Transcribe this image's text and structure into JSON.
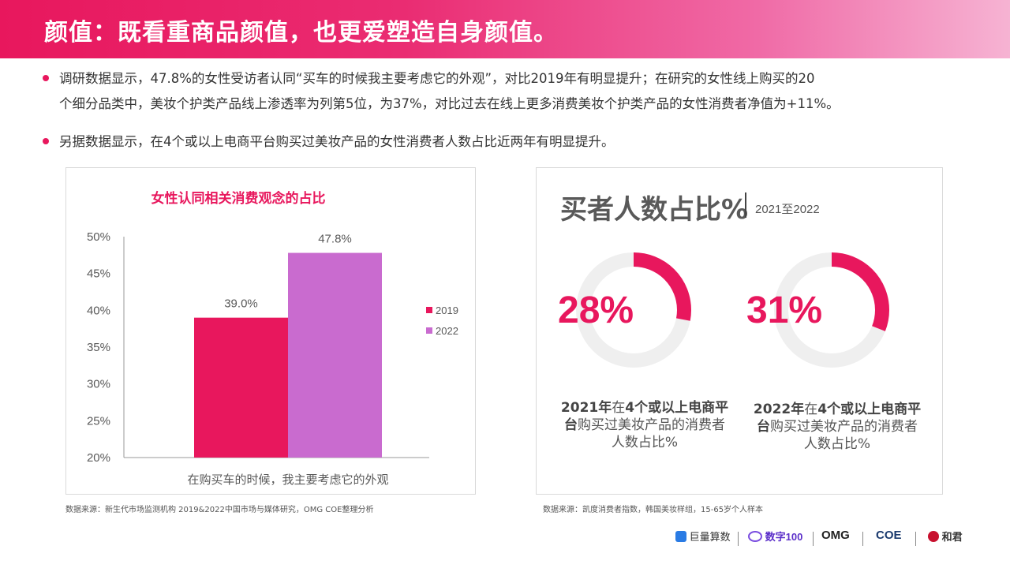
{
  "header": {
    "title": "颜值：既看重商品颜值，也更爱塑造自身颜值。"
  },
  "body": {
    "bullet1_line1": "调研数据显示，47.8%的女性受访者认同“买车的时候我主要考虑它的外观”，对比2019年有明显提升；在研究的女性线上购买的20",
    "bullet1_line2": "个细分品类中，美妆个护类产品线上渗透率为列第5位，为37%，对比过去在线上更多消费美妆个护类产品的女性消费者净值为+11%。",
    "bullet2": "另据数据显示，在4个或以上电商平台购买过美妆产品的女性消费者人数占比近两年有明显提升。"
  },
  "chart_data": [
    {
      "type": "bar",
      "title": "女性认同相关消费观念的占比",
      "categories": [
        "在购买车的时候，我主要考虑它的外观"
      ],
      "series": [
        {
          "name": "2019",
          "values": [
            39.0
          ],
          "color": "#e8175d",
          "label": "39.0%"
        },
        {
          "name": "2022",
          "values": [
            47.8
          ],
          "color": "#c96bcf",
          "label": "47.8%"
        }
      ],
      "ylim": [
        20,
        50
      ],
      "yticks": [
        "50%",
        "45%",
        "40%",
        "35%",
        "30%",
        "25%",
        "20%"
      ],
      "legend": "right",
      "grid": false
    },
    {
      "type": "pie",
      "title": "买者人数占比%",
      "subtitle": "2021至2022",
      "slices": [
        {
          "name": "2021年在4个或以上电商平台购买过美妆产品的消费者人数占比%",
          "value": 28,
          "label": "28%"
        },
        {
          "name": "2022年在4个或以上电商平台购买过美妆产品的消费者人数占比%",
          "value": 31,
          "label": "31%"
        }
      ]
    }
  ],
  "donuts": {
    "left": {
      "cap_bold1": "2021年",
      "cap_plain1": "在",
      "cap_bold2": "4个或以上电商平台",
      "cap_plain2": "购买过美妆产品的消费者人数占比%"
    },
    "right": {
      "cap_bold1": "2022年",
      "cap_plain1": "在",
      "cap_bold2": "4个或以上电商平台",
      "cap_plain2": "购买过美妆产品的消费者人数占比%"
    },
    "track_color": "#efefef",
    "fill_color": "#e8175d"
  },
  "sources": {
    "left": "数据来源：新生代市场监测机构 2019&2022中国市场与媒体研究，OMG COE整理分析",
    "right": "数据来源：凯度消费者指数，韩国美妆样组，15-65岁个人样本"
  },
  "footer": {
    "logo1": "巨量算数",
    "logo2": "数字100",
    "logo3": "OMG",
    "logo4": "COE",
    "logo5": "和君"
  }
}
